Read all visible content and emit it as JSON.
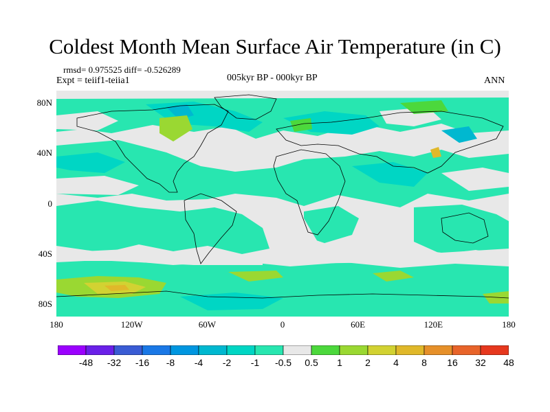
{
  "title": "Coldest Month Mean Surface Air Temperature (in C)",
  "stats": {
    "rmsd_label": "rmsd= 0.975525",
    "diff_label": "diff= -0.526289"
  },
  "expt": "Expt = teiif1-teiia1",
  "subtitle": "005kyr BP - 000kyr BP",
  "season": "ANN",
  "colors": {
    "zero_band": "#e8e8e8",
    "land_outline": "#000000",
    "levels": [
      "#9b00ff",
      "#6a20e8",
      "#3a5cd4",
      "#1a78e6",
      "#0096e0",
      "#00b8d0",
      "#00d6c4",
      "#28e6b0",
      "#e8e8e8",
      "#4cd83c",
      "#9ad832",
      "#d2d232",
      "#e0b82a",
      "#e6902a",
      "#e8642a",
      "#e6381e"
    ]
  },
  "map": {
    "y_ticks": [
      {
        "label": "80N",
        "lat": 80
      },
      {
        "label": "40N",
        "lat": 40
      },
      {
        "label": "0",
        "lat": 0
      },
      {
        "label": "40S",
        "lat": -40
      },
      {
        "label": "80S",
        "lat": -80
      }
    ],
    "x_ticks": [
      {
        "label": "180",
        "lon": -180
      },
      {
        "label": "120W",
        "lon": -120
      },
      {
        "label": "60W",
        "lon": -60
      },
      {
        "label": "0",
        "lon": 0
      },
      {
        "label": "60E",
        "lon": 60
      },
      {
        "label": "120E",
        "lon": 120
      },
      {
        "label": "180",
        "lon": 180
      }
    ]
  },
  "colorbar": {
    "labels": [
      "-48",
      "-32",
      "-16",
      "-8",
      "-4",
      "-2",
      "-1",
      "-0.5",
      "0.5",
      "1",
      "2",
      "4",
      "8",
      "16",
      "32",
      "48"
    ]
  }
}
